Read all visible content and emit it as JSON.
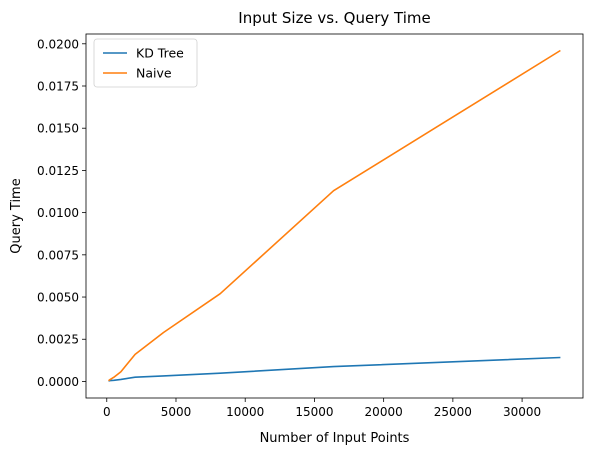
{
  "chart_data": {
    "type": "line",
    "title": "Input Size vs. Query Time",
    "xlabel": "Number of Input Points",
    "ylabel": "Query Time",
    "x": [
      128,
      256,
      512,
      1024,
      2048,
      4096,
      8192,
      16384,
      32768
    ],
    "series": [
      {
        "name": "KD Tree",
        "color": "#1f77b4",
        "values": [
          3e-05,
          5e-05,
          7e-05,
          0.00012,
          0.00025,
          0.00033,
          0.00049,
          0.00088,
          0.00142
        ]
      },
      {
        "name": "Naive",
        "color": "#ff7f0e",
        "values": [
          4e-05,
          0.00012,
          0.00025,
          0.00058,
          0.0016,
          0.0029,
          0.0052,
          0.0113,
          0.0196
        ]
      }
    ],
    "xlim": [
      -1500,
      34400
    ],
    "ylim": [
      -0.00098,
      0.02058
    ],
    "xticks": [
      0,
      5000,
      10000,
      15000,
      20000,
      25000,
      30000
    ],
    "xtick_labels": [
      "0",
      "5000",
      "10000",
      "15000",
      "20000",
      "25000",
      "30000"
    ],
    "yticks": [
      0,
      0.0025,
      0.005,
      0.0075,
      0.01,
      0.0125,
      0.015,
      0.0175,
      0.02
    ],
    "ytick_labels": [
      "0.0000",
      "0.0025",
      "0.0050",
      "0.0075",
      "0.0100",
      "0.0125",
      "0.0150",
      "0.0175",
      "0.0200"
    ],
    "grid": false,
    "legend_position": "top-left"
  }
}
